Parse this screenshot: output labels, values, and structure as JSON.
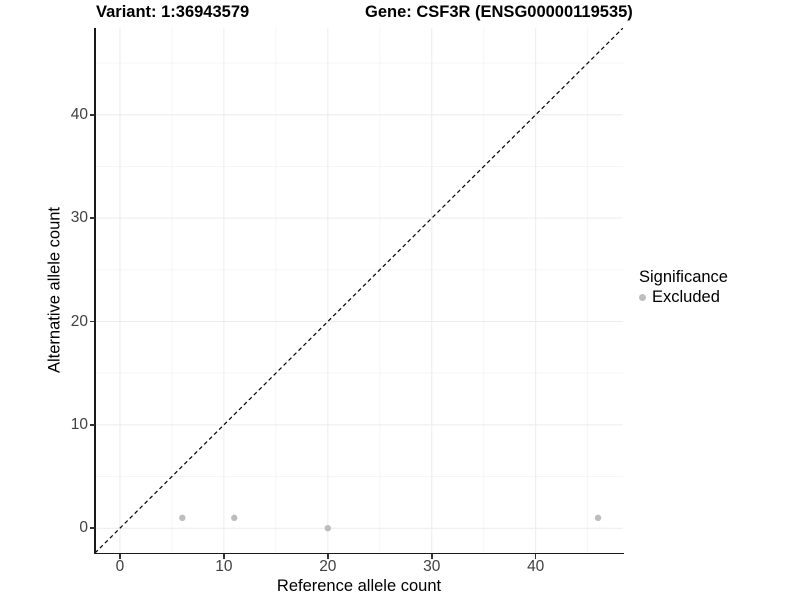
{
  "header": {
    "variant_title": "Variant: 1:36943579",
    "gene_title": "Gene: CSF3R (ENSG00000119535)"
  },
  "chart_data": {
    "type": "scatter",
    "xlabel": "Reference allele count",
    "ylabel": "Alternative allele count",
    "xlim": [
      -2.4,
      48.4
    ],
    "ylim": [
      -2.4,
      48.4
    ],
    "x_major_ticks": [
      0,
      10,
      20,
      30,
      40
    ],
    "y_major_ticks": [
      0,
      10,
      20,
      30,
      40
    ],
    "x_minor_ticks": [
      5,
      15,
      25,
      35,
      45
    ],
    "y_minor_ticks": [
      5,
      15,
      25,
      35,
      45
    ],
    "grid": "major and minor gridlines, light gray on white panel",
    "identity_line": {
      "style": "dashed",
      "from": [
        -2.4,
        -2.4
      ],
      "to": [
        48.4,
        48.4
      ],
      "color": "#000000"
    },
    "series": [
      {
        "name": "Excluded",
        "color": "#bdbdbd",
        "points": [
          [
            6,
            1
          ],
          [
            11,
            1
          ],
          [
            20,
            0
          ],
          [
            46,
            1
          ]
        ]
      }
    ],
    "legend": {
      "title": "Significance",
      "position": "right",
      "items": [
        {
          "label": "Excluded",
          "color": "#bdbdbd"
        }
      ]
    }
  },
  "colors": {
    "background": "#ffffff",
    "grid_major": "#ececec",
    "grid_minor": "#f5f5f5",
    "axis_line": "#1a1a1a",
    "tick_label": "#404040",
    "point": "#bdbdbd"
  }
}
